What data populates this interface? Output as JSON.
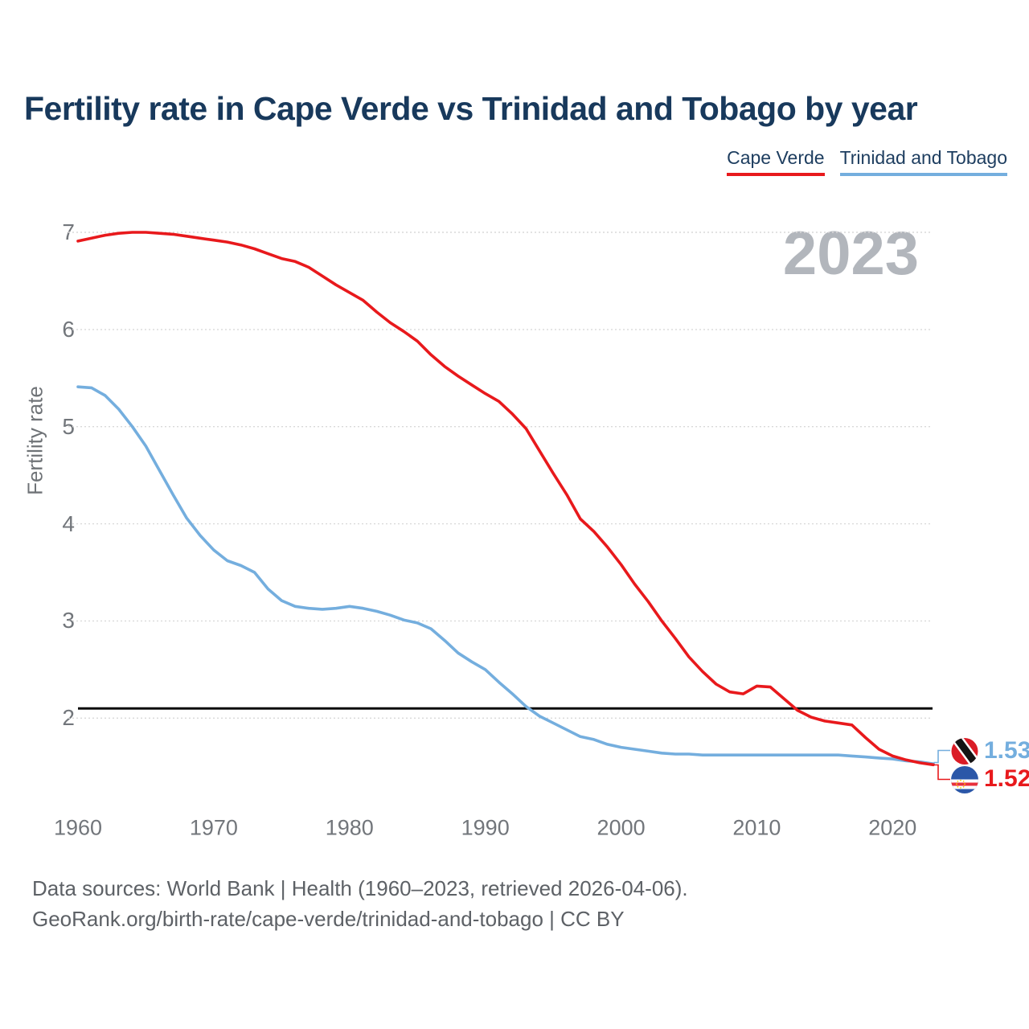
{
  "title": "Fertility rate in Cape Verde vs Trinidad and Tobago by year",
  "watermark_year": "2023",
  "colors": {
    "cape_verde": "#e8191c",
    "trinidad_and_tobago": "#74aede",
    "title_text": "#18395c",
    "tick_text": "#72767b",
    "watermark": "#b2b6bc",
    "reference_line": "#0a0a0a"
  },
  "legend": {
    "items": [
      {
        "label": "Cape Verde",
        "color": "#e8191c"
      },
      {
        "label": "Trinidad and Tobago",
        "color": "#74aede"
      }
    ]
  },
  "end_labels": [
    {
      "series": "Trinidad and Tobago",
      "value": "1.53",
      "color": "#74aede",
      "flag": "trinidad-and-tobago-flag"
    },
    {
      "series": "Cape Verde",
      "value": "1.52",
      "color": "#e8191c",
      "flag": "cape-verde-flag"
    }
  ],
  "footer": {
    "line1": "Data sources: World Bank | Health (1960–2023, retrieved 2026-04-06).",
    "line2": "GeoRank.org/birth-rate/cape-verde/trinidad-and-tobago | CC BY"
  },
  "chart_data": {
    "type": "line",
    "title": "Fertility rate in Cape Verde vs Trinidad and Tobago by year",
    "xlabel": "",
    "ylabel": "Fertility rate",
    "x_ticks": [
      1960,
      1970,
      1980,
      1990,
      2000,
      2010,
      2020
    ],
    "y_ticks": [
      2,
      3,
      4,
      5,
      6,
      7
    ],
    "xlim": [
      1960,
      2023
    ],
    "ylim": [
      2,
      7
    ],
    "grid": "horizontal-dotted",
    "legend_position": "top-right",
    "reference_line": {
      "value": 2.1,
      "color": "#0a0a0a"
    },
    "x": [
      1960,
      1961,
      1962,
      1963,
      1964,
      1965,
      1966,
      1967,
      1968,
      1969,
      1970,
      1971,
      1972,
      1973,
      1974,
      1975,
      1976,
      1977,
      1978,
      1979,
      1980,
      1981,
      1982,
      1983,
      1984,
      1985,
      1986,
      1987,
      1988,
      1989,
      1990,
      1991,
      1992,
      1993,
      1994,
      1995,
      1996,
      1997,
      1998,
      1999,
      2000,
      2001,
      2002,
      2003,
      2004,
      2005,
      2006,
      2007,
      2008,
      2009,
      2010,
      2011,
      2012,
      2013,
      2014,
      2015,
      2016,
      2017,
      2018,
      2019,
      2020,
      2021,
      2022,
      2023
    ],
    "series": [
      {
        "name": "Trinidad and Tobago",
        "color": "#74aede",
        "final_value": 1.53,
        "values": [
          5.41,
          5.4,
          5.32,
          5.18,
          5.0,
          4.8,
          4.55,
          4.3,
          4.06,
          3.88,
          3.73,
          3.62,
          3.57,
          3.5,
          3.33,
          3.21,
          3.15,
          3.13,
          3.12,
          3.13,
          3.15,
          3.13,
          3.1,
          3.06,
          3.01,
          2.98,
          2.92,
          2.8,
          2.67,
          2.58,
          2.5,
          2.37,
          2.25,
          2.12,
          2.02,
          1.95,
          1.88,
          1.81,
          1.78,
          1.73,
          1.7,
          1.68,
          1.66,
          1.64,
          1.63,
          1.63,
          1.62,
          1.62,
          1.62,
          1.62,
          1.62,
          1.62,
          1.62,
          1.62,
          1.62,
          1.62,
          1.62,
          1.61,
          1.6,
          1.59,
          1.58,
          1.56,
          1.55,
          1.53
        ]
      },
      {
        "name": "Cape Verde",
        "color": "#e8191c",
        "final_value": 1.52,
        "values": [
          6.91,
          6.94,
          6.97,
          6.99,
          7.0,
          7.0,
          6.99,
          6.98,
          6.96,
          6.94,
          6.92,
          6.9,
          6.87,
          6.83,
          6.78,
          6.73,
          6.7,
          6.64,
          6.55,
          6.46,
          6.38,
          6.3,
          6.18,
          6.07,
          5.98,
          5.88,
          5.74,
          5.62,
          5.52,
          5.43,
          5.34,
          5.26,
          5.13,
          4.98,
          4.75,
          4.52,
          4.3,
          4.05,
          3.92,
          3.76,
          3.58,
          3.38,
          3.2,
          3.0,
          2.82,
          2.63,
          2.48,
          2.35,
          2.27,
          2.25,
          2.33,
          2.32,
          2.2,
          2.08,
          2.01,
          1.97,
          1.95,
          1.93,
          1.8,
          1.68,
          1.61,
          1.57,
          1.54,
          1.52
        ]
      }
    ]
  }
}
